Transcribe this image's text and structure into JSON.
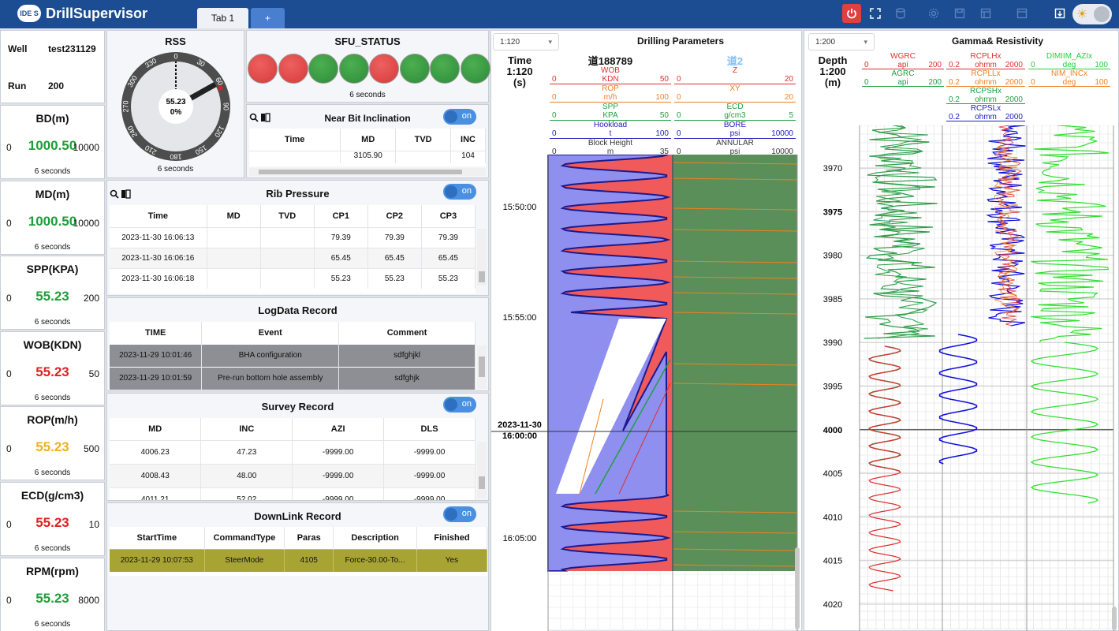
{
  "app": {
    "logo_badge": "IDE S",
    "title": "DrillSupervisor"
  },
  "tabs": [
    {
      "label": "Tab 1"
    },
    {
      "label": "+"
    }
  ],
  "well": {
    "label": "Well",
    "value": "test231129",
    "run_label": "Run",
    "run_value": "200"
  },
  "gauges": [
    {
      "name": "BD(m)",
      "min": "0",
      "value": "1000.50",
      "max": "10000",
      "foot": "6 seconds",
      "color": "#1e9e3a"
    },
    {
      "name": "MD(m)",
      "min": "0",
      "value": "1000.50",
      "max": "10000",
      "foot": "6 seconds",
      "color": "#1e9e3a"
    },
    {
      "name": "SPP(KPA)",
      "min": "0",
      "value": "55.23",
      "max": "200",
      "foot": "6 seconds",
      "color": "#1e9e3a"
    },
    {
      "name": "WOB(KDN)",
      "min": "0",
      "value": "55.23",
      "max": "50",
      "foot": "6 seconds",
      "color": "#e02020"
    },
    {
      "name": "ROP(m/h)",
      "min": "0",
      "value": "55.23",
      "max": "500",
      "foot": "6 seconds",
      "color": "#f0b020"
    },
    {
      "name": "ECD(g/cm3)",
      "min": "0",
      "value": "55.23",
      "max": "10",
      "foot": "6 seconds",
      "color": "#e02020"
    },
    {
      "name": "RPM(rpm)",
      "min": "0",
      "value": "55.23",
      "max": "8000",
      "foot": "6 seconds",
      "color": "#1e9e3a"
    }
  ],
  "rss": {
    "title": "RSS",
    "center_value": "55.23",
    "center_pct": "0%",
    "foot": "6 seconds",
    "ticks": [
      "0",
      "30",
      "60",
      "90",
      "120",
      "150",
      "180",
      "210",
      "240",
      "270",
      "300",
      "330"
    ]
  },
  "sfu": {
    "title": "SFU_STATUS",
    "foot": "6 seconds",
    "lights": [
      "red",
      "red",
      "green",
      "green",
      "red",
      "green",
      "green",
      "green"
    ]
  },
  "nbi": {
    "title": "Near Bit Inclination",
    "toggle": "on",
    "headers": [
      "Time",
      "MD",
      "TVD",
      "INC"
    ],
    "rows": [
      [
        "",
        "3105.90",
        "",
        "104"
      ]
    ]
  },
  "rib": {
    "title": "Rib Pressure",
    "toggle": "on",
    "headers": [
      "Time",
      "MD",
      "TVD",
      "CP1",
      "CP2",
      "CP3"
    ],
    "rows": [
      [
        "2023-11-30 16:06:13",
        "",
        "",
        "79.39",
        "79.39",
        "79.39"
      ],
      [
        "2023-11-30 16:06:16",
        "",
        "",
        "65.45",
        "65.45",
        "65.45"
      ],
      [
        "2023-11-30 16:06:18",
        "",
        "",
        "55.23",
        "55.23",
        "55.23"
      ]
    ]
  },
  "logdata": {
    "title": "LogData Record",
    "headers": [
      "TIME",
      "Event",
      "Comment"
    ],
    "rows": [
      [
        "2023-11-29 10:01:46",
        "BHA configuration",
        "sdfghjkl"
      ],
      [
        "2023-11-29 10:01:59",
        "Pre-run bottom hole assembly",
        "sdfghjk"
      ]
    ]
  },
  "survey": {
    "title": "Survey Record",
    "toggle": "on",
    "headers": [
      "MD",
      "INC",
      "AZI",
      "DLS"
    ],
    "rows": [
      [
        "4006.23",
        "47.23",
        "-9999.00",
        "-9999.00"
      ],
      [
        "4008.43",
        "48.00",
        "-9999.00",
        "-9999.00"
      ],
      [
        "4011.21",
        "52.02",
        "-9999.00",
        "-9999.00"
      ]
    ]
  },
  "downlink": {
    "title": "DownLink Record",
    "toggle": "on",
    "headers": [
      "StartTime",
      "CommandType",
      "Paras",
      "Description",
      "Finished"
    ],
    "rows": [
      [
        "2023-11-29 10:07:53",
        "SteerMode",
        "4105",
        "Force-30.00-To...",
        "Yes"
      ]
    ]
  },
  "drilling": {
    "title": "Drilling Parameters",
    "scale": "1:120",
    "axis_title": "Time",
    "axis_scale": "1:120",
    "axis_unit": "(s)",
    "track1_title": "道188789",
    "track2_title": "道2",
    "track1_curves": [
      {
        "name": "WOB",
        "unit": "KDN",
        "min": "0",
        "max": "50",
        "color": "#e03030"
      },
      {
        "name": "ROP",
        "unit": "m/h",
        "min": "0",
        "max": "100",
        "color": "#f08020"
      },
      {
        "name": "SPP",
        "unit": "KPA",
        "min": "0",
        "max": "50",
        "color": "#20a040"
      },
      {
        "name": "Hookload",
        "unit": "t",
        "min": "0",
        "max": "100",
        "color": "#2020c0"
      },
      {
        "name": "Block Height",
        "unit": "m",
        "min": "0",
        "max": "35",
        "color": "#333333"
      }
    ],
    "track2_curves": [
      {
        "name": "Z",
        "unit": "",
        "min": "0",
        "max": "20",
        "color": "#e03030"
      },
      {
        "name": "XY",
        "unit": "",
        "min": "0",
        "max": "20",
        "color": "#f08020"
      },
      {
        "name": "ECD",
        "unit": "g/cm3",
        "min": "0",
        "max": "5",
        "color": "#20a040"
      },
      {
        "name": "BORE",
        "unit": "psi",
        "min": "0",
        "max": "10000",
        "color": "#2020c0"
      },
      {
        "name": "ANNULAR",
        "unit": "psi",
        "min": "0",
        "max": "10000",
        "color": "#333333"
      }
    ],
    "time_labels": [
      "15:50:00",
      "15:55:00",
      "2023-11-30",
      "16:00:00",
      "16:05:00"
    ]
  },
  "gamma": {
    "title": "Gamma& Resistivity",
    "scale": "1:200",
    "axis_title": "Depth",
    "axis_scale": "1:200",
    "axis_unit": "(m)",
    "track1_curves": [
      {
        "name": "WGRC",
        "unit": "api",
        "min": "0",
        "max": "200",
        "color": "#e03030"
      },
      {
        "name": "AGRC",
        "unit": "api",
        "min": "0",
        "max": "200",
        "color": "#20a040"
      }
    ],
    "track2_curves": [
      {
        "name": "RCPLHx",
        "unit": "ohmm",
        "min": "0.2",
        "max": "2000",
        "color": "#e03030"
      },
      {
        "name": "RCPLLx",
        "unit": "ohmm",
        "min": "0.2",
        "max": "2000",
        "color": "#f08020"
      },
      {
        "name": "RCPSHx",
        "unit": "ohmm",
        "min": "0.2",
        "max": "2000",
        "color": "#20a040"
      },
      {
        "name": "RCPSLx",
        "unit": "ohmm",
        "min": "0.2",
        "max": "2000",
        "color": "#2020c0"
      }
    ],
    "track3_curves": [
      {
        "name": "DIMIIM_AZIx",
        "unit": "deg",
        "min": "0",
        "max": "100",
        "color": "#20d040"
      },
      {
        "name": "NIM_INCx",
        "unit": "deg",
        "min": "0",
        "max": "100",
        "color": "#f08020"
      }
    ],
    "depth_labels": [
      "3970",
      "3975",
      "3980",
      "3985",
      "3990",
      "3995",
      "4000",
      "4005",
      "4010",
      "4015",
      "4020"
    ]
  }
}
